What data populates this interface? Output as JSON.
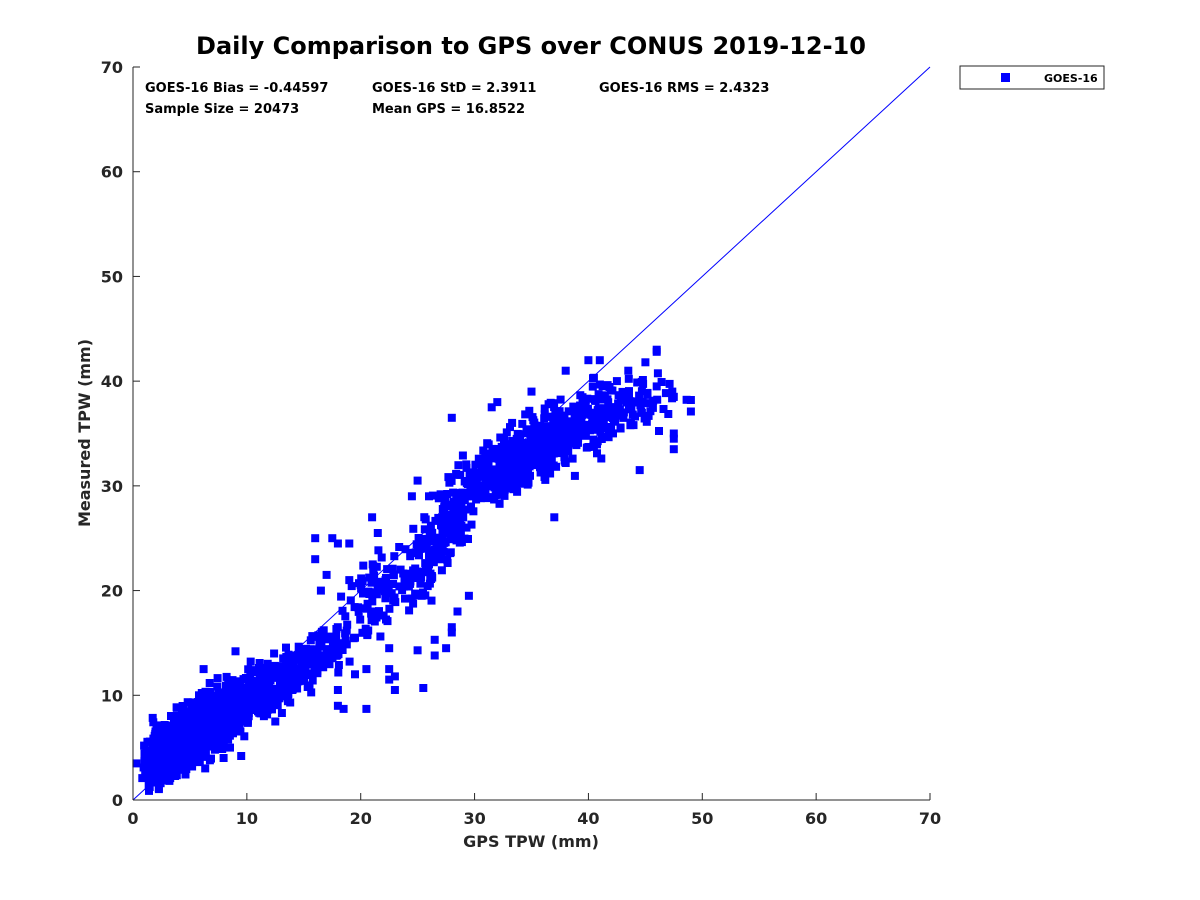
{
  "chart_data": {
    "type": "scatter",
    "title": "Daily Comparison to GPS over CONUS 2019-12-10",
    "xlabel": "GPS TPW (mm)",
    "ylabel": "Measured TPW (mm)",
    "xlim": [
      0,
      70
    ],
    "ylim": [
      0,
      70
    ],
    "xticks": [
      "0",
      "10",
      "20",
      "30",
      "40",
      "50",
      "60",
      "70"
    ],
    "yticks": [
      "0",
      "10",
      "20",
      "30",
      "40",
      "50",
      "60",
      "70"
    ],
    "grid": false,
    "legend_position": "outside-top-right",
    "stats": {
      "bias": "GOES-16 Bias = -0.44597",
      "std": "GOES-16 StD = 2.3911",
      "rms": "GOES-16 RMS = 2.4323",
      "sample": "Sample Size = 20473",
      "mean": "Mean GPS = 16.8522"
    },
    "reference_line": {
      "name": "1:1 line",
      "x": [
        0,
        70
      ],
      "y": [
        0,
        70
      ],
      "color": "#0000ff"
    },
    "series": [
      {
        "name": "GOES-16",
        "color": "#0000ff",
        "marker": "square",
        "clusters": [
          {
            "cx": 5,
            "cy": 6,
            "rx": 4.5,
            "ry": 4.5,
            "n": 700,
            "corr": 0.7
          },
          {
            "cx": 10,
            "cy": 9.5,
            "rx": 5,
            "ry": 4,
            "n": 350,
            "corr": 0.8
          },
          {
            "cx": 15,
            "cy": 13,
            "rx": 4,
            "ry": 3.5,
            "n": 160,
            "corr": 0.7
          },
          {
            "cx": 22,
            "cy": 20,
            "rx": 5,
            "ry": 5,
            "n": 110,
            "corr": 0.6
          },
          {
            "cx": 27,
            "cy": 25,
            "rx": 3,
            "ry": 5,
            "n": 130,
            "corr": 0.7
          },
          {
            "cx": 33,
            "cy": 32,
            "rx": 5,
            "ry": 4,
            "n": 420,
            "corr": 0.7
          },
          {
            "cx": 39,
            "cy": 36,
            "rx": 5,
            "ry": 4,
            "n": 260,
            "corr": 0.6
          },
          {
            "cx": 45,
            "cy": 38,
            "rx": 3,
            "ry": 3,
            "n": 50,
            "corr": 0.4
          }
        ],
        "points": [
          [
            0.3,
            3.5
          ],
          [
            1,
            3.7
          ],
          [
            47.5,
            35
          ],
          [
            47.5,
            34.5
          ],
          [
            47.5,
            33.5
          ],
          [
            47.5,
            38.5
          ],
          [
            49,
            38.2
          ],
          [
            49,
            37.1
          ],
          [
            46,
            39.5
          ],
          [
            44.5,
            31.5
          ],
          [
            46,
            42.8
          ],
          [
            46,
            43
          ],
          [
            45,
            41.8
          ],
          [
            40,
            42
          ],
          [
            36.5,
            37.8
          ],
          [
            37,
            27
          ],
          [
            29.5,
            19.5
          ],
          [
            28.5,
            18
          ],
          [
            28,
            16.5
          ],
          [
            28,
            16
          ],
          [
            27.5,
            14.5
          ],
          [
            26.5,
            15.3
          ],
          [
            26.5,
            13.8
          ],
          [
            25,
            14.3
          ],
          [
            25.5,
            10.7
          ],
          [
            22.5,
            11.5
          ],
          [
            22.5,
            14.5
          ],
          [
            22.5,
            12.5
          ],
          [
            23,
            10.5
          ],
          [
            23,
            11.8
          ],
          [
            20.5,
            12.5
          ],
          [
            19.5,
            12
          ],
          [
            20.5,
            8.7
          ],
          [
            18.5,
            8.7
          ],
          [
            18,
            10.5
          ],
          [
            18,
            9
          ],
          [
            16,
            25
          ],
          [
            17,
            21.5
          ],
          [
            16.5,
            20
          ],
          [
            16,
            23
          ],
          [
            18,
            24.5
          ],
          [
            19,
            24.5
          ],
          [
            21,
            27
          ],
          [
            17.5,
            25
          ],
          [
            19,
            21
          ],
          [
            26,
            29
          ],
          [
            24.5,
            29
          ],
          [
            25,
            30.5
          ],
          [
            28.5,
            28
          ],
          [
            29,
            27
          ],
          [
            31.5,
            37.5
          ],
          [
            32,
            38
          ],
          [
            28,
            36.5
          ],
          [
            35,
            39
          ],
          [
            38,
            41
          ],
          [
            41,
            42
          ],
          [
            42.5,
            40
          ],
          [
            43.5,
            41
          ],
          [
            21.5,
            25.5
          ],
          [
            20,
            20.5
          ],
          [
            15,
            14.3
          ],
          [
            9,
            14.2
          ],
          [
            6.2,
            12.5
          ],
          [
            9.5,
            4.2
          ],
          [
            11.5,
            8
          ],
          [
            12.5,
            7.5
          ],
          [
            14,
            10.5
          ],
          [
            17,
            13.5
          ],
          [
            19.5,
            15.5
          ],
          [
            21,
            18
          ],
          [
            23.5,
            22
          ],
          [
            26,
            22.5
          ]
        ]
      }
    ]
  }
}
